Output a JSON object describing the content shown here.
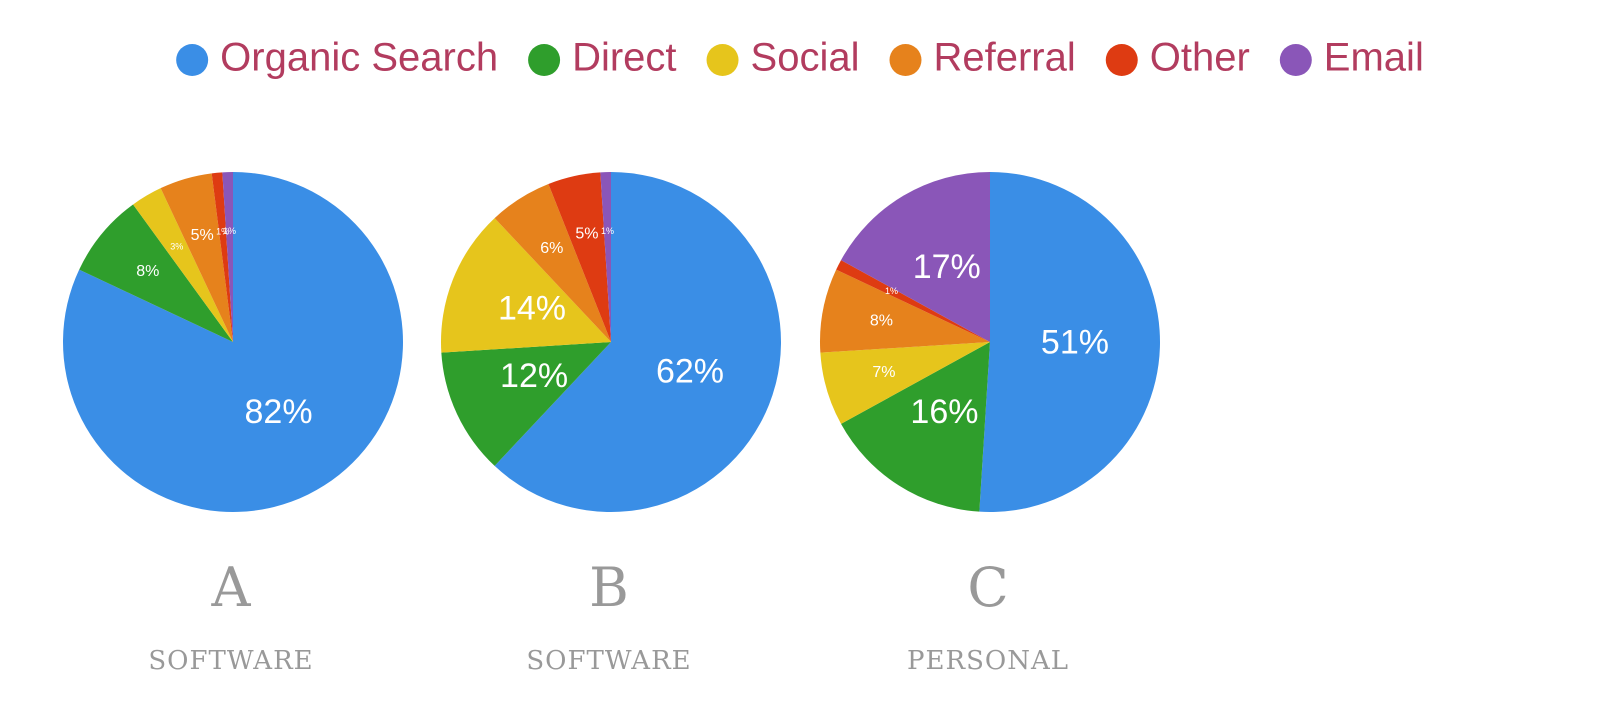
{
  "chart_data": [
    {
      "type": "pie",
      "title": "A",
      "subtitle": "SOFTWARE",
      "categories": [
        "Organic Search",
        "Direct",
        "Social",
        "Referral",
        "Other",
        "Email"
      ],
      "values": [
        82,
        8,
        3,
        5,
        1,
        1
      ],
      "value_labels": [
        "82%",
        "8%",
        "3%",
        "5%",
        "1%",
        "1%"
      ],
      "colors": [
        "#3a8ee6",
        "#2f9e2c",
        "#e6c51c",
        "#e6821c",
        "#de3b12",
        "#8a56b8"
      ]
    },
    {
      "type": "pie",
      "title": "B",
      "subtitle": "SOFTWARE",
      "categories": [
        "Organic Search",
        "Direct",
        "Social",
        "Referral",
        "Other",
        "Email"
      ],
      "values": [
        62,
        12,
        14,
        6,
        5,
        1
      ],
      "value_labels": [
        "62%",
        "12%",
        "14%",
        "6%",
        "5%",
        "1%"
      ],
      "colors": [
        "#3a8ee6",
        "#2f9e2c",
        "#e6c51c",
        "#e6821c",
        "#de3b12",
        "#8a56b8"
      ]
    },
    {
      "type": "pie",
      "title": "C",
      "subtitle": "PERSONAL",
      "categories": [
        "Organic Search",
        "Direct",
        "Social",
        "Referral",
        "Other",
        "Email"
      ],
      "values": [
        51,
        16,
        7,
        8,
        1,
        17
      ],
      "value_labels": [
        "51%",
        "16%",
        "7%",
        "8%",
        "1%",
        "17%"
      ],
      "colors": [
        "#3a8ee6",
        "#2f9e2c",
        "#e6c51c",
        "#e6821c",
        "#de3b12",
        "#8a56b8"
      ]
    }
  ]
}
